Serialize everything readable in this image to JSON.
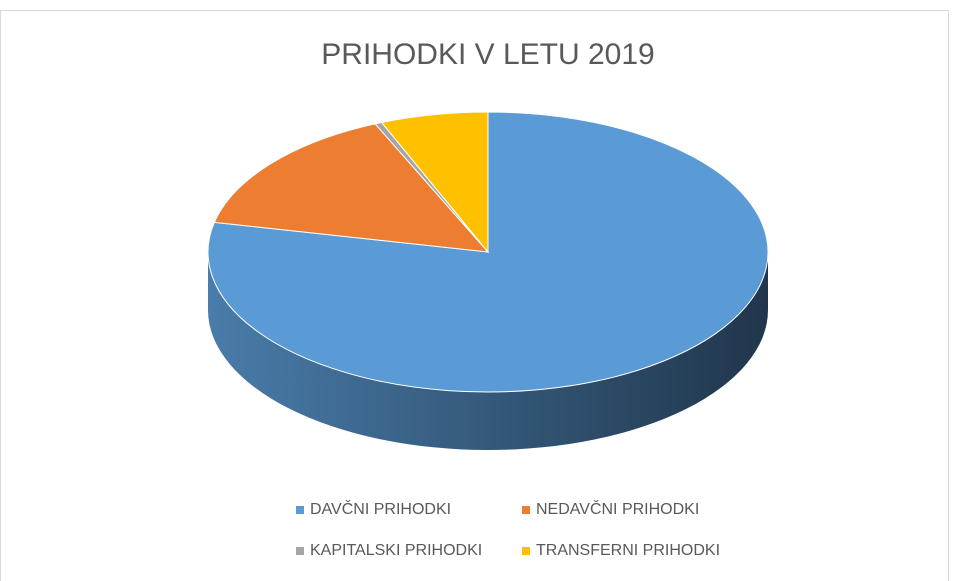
{
  "chart_data": {
    "type": "pie",
    "title": "PRIHODKI V LETU 2019",
    "categories": [
      "DAVČNI PRIHODKI",
      "NEDAVČNI PRIHODKI",
      "KAPITALSKI PRIHODKI",
      "TRANSFERNI PRIHODKI"
    ],
    "values": [
      78.4,
      15,
      0.4,
      6.2
    ],
    "colors": [
      "#5b9bd5",
      "#ed7d31",
      "#a5a5a5",
      "#ffc000"
    ],
    "legend": "bottom"
  }
}
